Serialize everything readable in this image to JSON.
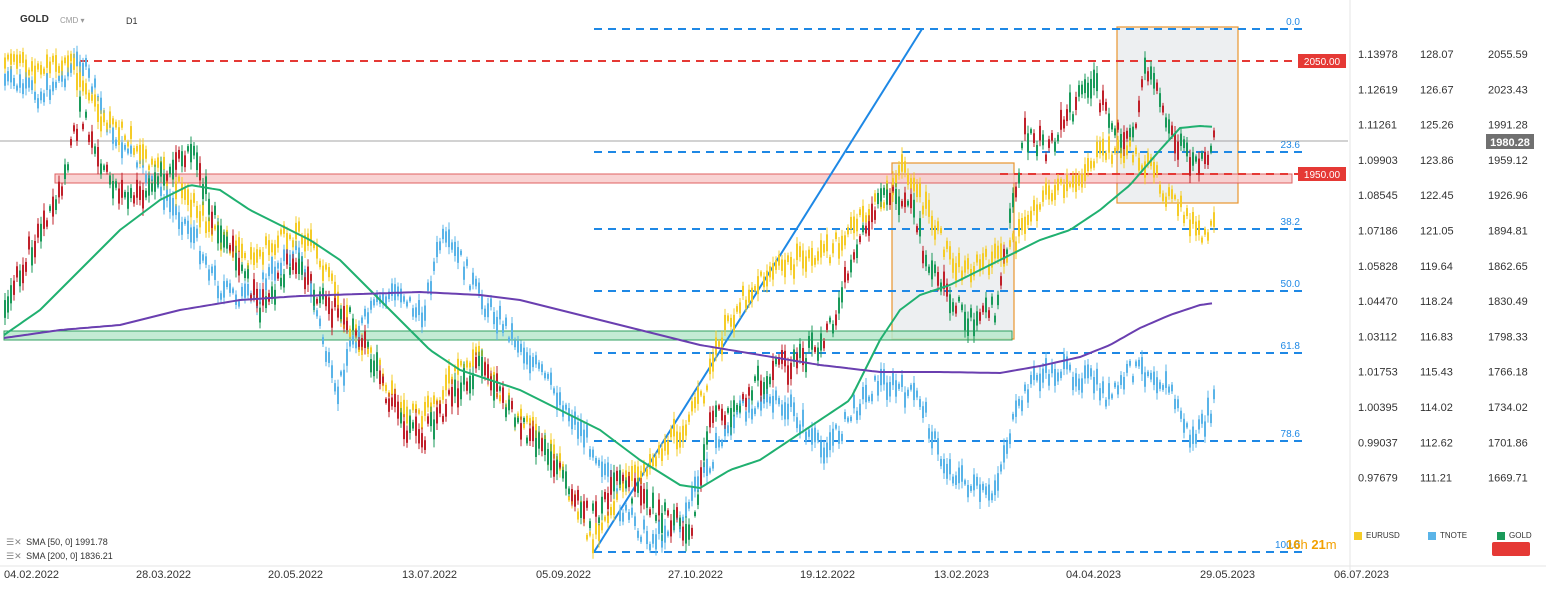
{
  "header": {
    "symbol": "GOLD",
    "source": "CMD",
    "timeframe": "D1"
  },
  "chart_data": {
    "type": "line",
    "x_ticks": [
      "04.02.2022",
      "28.03.2022",
      "20.05.2022",
      "13.07.2022",
      "05.09.2022",
      "27.10.2022",
      "19.12.2022",
      "13.02.2023",
      "04.04.2023",
      "29.05.2023",
      "06.07.2023"
    ],
    "axes": [
      {
        "name": "EURUSD",
        "ticks": [
          "1.13978",
          "1.12619",
          "1.11261",
          "1.09903",
          "1.08545",
          "1.07186",
          "1.05828",
          "1.04470",
          "1.03112",
          "1.01753",
          "1.00395",
          "0.99037",
          "0.97679"
        ]
      },
      {
        "name": "TNOTE",
        "ticks": [
          "128.07",
          "126.67",
          "125.26",
          "123.86",
          "122.45",
          "121.05",
          "119.64",
          "118.24",
          "116.83",
          "115.43",
          "114.02",
          "112.62",
          "111.21"
        ]
      },
      {
        "name": "GOLD",
        "ticks": [
          "2055.59",
          "2023.43",
          "1991.28",
          "1959.12",
          "1926.96",
          "1894.81",
          "1862.65",
          "1830.49",
          "1798.33",
          "1766.18",
          "1734.02",
          "1701.86",
          "1669.71"
        ]
      }
    ],
    "fib_levels": [
      "0.0",
      "23.6",
      "38.2",
      "50.0",
      "61.8",
      "78.6",
      "100.0"
    ],
    "price_labels": {
      "current": "1980.28",
      "level_2050": "2050.00",
      "level_1950": "1950.00"
    },
    "series": [
      {
        "name": "EURUSD",
        "color": "#f5cc28"
      },
      {
        "name": "TNOTE",
        "color": "#5ab4e8"
      },
      {
        "name": "GOLD",
        "color": "#1a9a5a"
      }
    ],
    "sma": [
      {
        "label": "SMA [50, 0]",
        "value": "1991.78",
        "color": "#20b070"
      },
      {
        "label": "SMA [200, 0]",
        "value": "1836.21",
        "color": "#6a3fb0"
      }
    ],
    "grid": false
  },
  "countdown": {
    "h": "16",
    "h_unit": "h",
    "m": "21",
    "m_unit": "m"
  },
  "colors": {
    "bull": "#1a9a5a",
    "bear": "#c0202a",
    "fib": "#1e88e5",
    "red_level": "#e53935",
    "box": "#e8952e"
  }
}
